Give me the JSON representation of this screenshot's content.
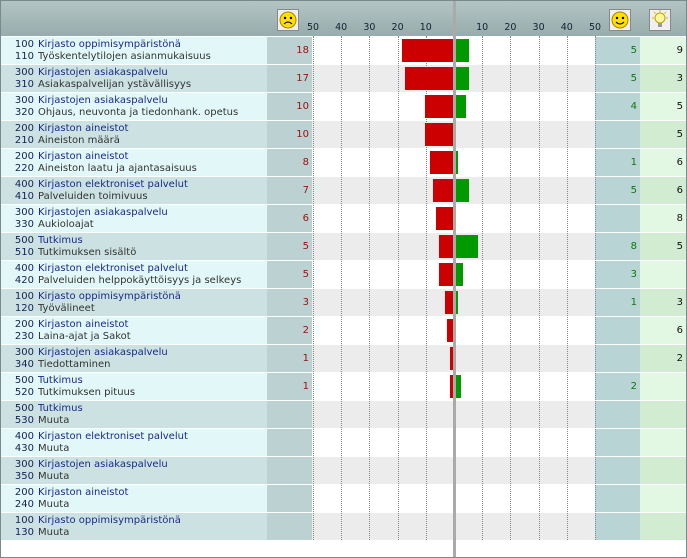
{
  "axis": {
    "xlim": [
      0,
      50
    ],
    "negative_ticks": [
      50,
      40,
      30,
      20,
      10
    ],
    "positive_ticks": [
      10,
      20,
      30,
      40,
      50
    ]
  },
  "colors": {
    "negative": "#cc0000",
    "positive": "#009900"
  },
  "rows": [
    {
      "group_code": "100",
      "group": "Kirjasto oppimisympäristönä",
      "code": "110",
      "label": "Työskentelytilojen asianmukaisuus",
      "negative": 18,
      "positive": 5,
      "ideas": 9
    },
    {
      "group_code": "300",
      "group": "Kirjastojen asiakaspalvelu",
      "code": "310",
      "label": "Asiakaspalvelijan ystävällisyys",
      "negative": 17,
      "positive": 5,
      "ideas": 3
    },
    {
      "group_code": "300",
      "group": "Kirjastojen asiakaspalvelu",
      "code": "320",
      "label": "Ohjaus, neuvonta ja tiedonhank. opetus",
      "negative": 10,
      "positive": 4,
      "ideas": 5
    },
    {
      "group_code": "200",
      "group": "Kirjaston aineistot",
      "code": "210",
      "label": "Aineiston määrä",
      "negative": 10,
      "positive": null,
      "ideas": 5
    },
    {
      "group_code": "200",
      "group": "Kirjaston aineistot",
      "code": "220",
      "label": "Aineiston laatu ja ajantasaisuus",
      "negative": 8,
      "positive": 1,
      "ideas": 6
    },
    {
      "group_code": "400",
      "group": "Kirjaston elektroniset palvelut",
      "code": "410",
      "label": "Palveluiden toimivuus",
      "negative": 7,
      "positive": 5,
      "ideas": 6
    },
    {
      "group_code": "300",
      "group": "Kirjastojen asiakaspalvelu",
      "code": "330",
      "label": "Aukioloajat",
      "negative": 6,
      "positive": null,
      "ideas": 8
    },
    {
      "group_code": "500",
      "group": "Tutkimus",
      "code": "510",
      "label": "Tutkimuksen sisältö",
      "negative": 5,
      "positive": 8,
      "ideas": 5
    },
    {
      "group_code": "400",
      "group": "Kirjaston elektroniset palvelut",
      "code": "420",
      "label": "Palveluiden helppokäyttöisyys ja selkeys",
      "negative": 5,
      "positive": 3,
      "ideas": null
    },
    {
      "group_code": "100",
      "group": "Kirjasto oppimisympäristönä",
      "code": "120",
      "label": "Työvälineet",
      "negative": 3,
      "positive": 1,
      "ideas": 3
    },
    {
      "group_code": "200",
      "group": "Kirjaston aineistot",
      "code": "230",
      "label": "Laina-ajat ja Sakot",
      "negative": 2,
      "positive": null,
      "ideas": 6
    },
    {
      "group_code": "300",
      "group": "Kirjastojen asiakaspalvelu",
      "code": "340",
      "label": "Tiedottaminen",
      "negative": 1,
      "positive": null,
      "ideas": 2
    },
    {
      "group_code": "500",
      "group": "Tutkimus",
      "code": "520",
      "label": "Tutkimuksen pituus",
      "negative": 1,
      "positive": 2,
      "ideas": null
    },
    {
      "group_code": "500",
      "group": "Tutkimus",
      "code": "530",
      "label": "Muuta",
      "negative": null,
      "positive": null,
      "ideas": null
    },
    {
      "group_code": "400",
      "group": "Kirjaston elektroniset palvelut",
      "code": "430",
      "label": "Muuta",
      "negative": null,
      "positive": null,
      "ideas": null
    },
    {
      "group_code": "300",
      "group": "Kirjastojen asiakaspalvelu",
      "code": "350",
      "label": "Muuta",
      "negative": null,
      "positive": null,
      "ideas": null
    },
    {
      "group_code": "200",
      "group": "Kirjaston aineistot",
      "code": "240",
      "label": "Muuta",
      "negative": null,
      "positive": null,
      "ideas": null
    },
    {
      "group_code": "100",
      "group": "Kirjasto oppimisympäristönä",
      "code": "130",
      "label": "Muuta",
      "negative": null,
      "positive": null,
      "ideas": null
    }
  ]
}
